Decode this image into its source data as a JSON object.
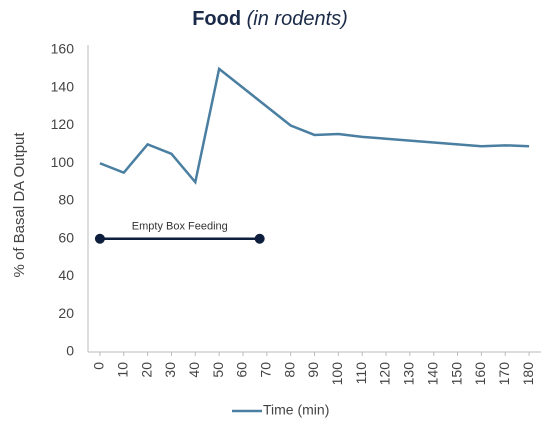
{
  "chart_data": {
    "type": "line",
    "title": "Food",
    "subtitle": "(in rodents)",
    "y_label": "% of Basal DA Output",
    "x": [
      0,
      10,
      20,
      30,
      40,
      50,
      60,
      70,
      80,
      90,
      100,
      110,
      120,
      130,
      140,
      150,
      160,
      170,
      180
    ],
    "series": [
      {
        "name": "Time (min)",
        "color": "#4a7fa1",
        "values": [
          100,
          95,
          110,
          105,
          90,
          150,
          140,
          130,
          120,
          115,
          115.5,
          114,
          113,
          112,
          111,
          110,
          109,
          109.5,
          109
        ]
      }
    ],
    "xlim": [
      -5,
      185
    ],
    "xticks": [
      0,
      10,
      20,
      30,
      40,
      50,
      60,
      70,
      80,
      90,
      100,
      110,
      120,
      130,
      140,
      150,
      160,
      170,
      180
    ],
    "ylim": [
      0,
      160
    ],
    "yticks": [
      0,
      20,
      40,
      60,
      80,
      100,
      120,
      140,
      160
    ],
    "annotation": {
      "text": "Empty Box Feeding",
      "x": [
        0,
        67
      ],
      "y": 60,
      "color": "#0d1f3c"
    },
    "legend": "bottom"
  }
}
